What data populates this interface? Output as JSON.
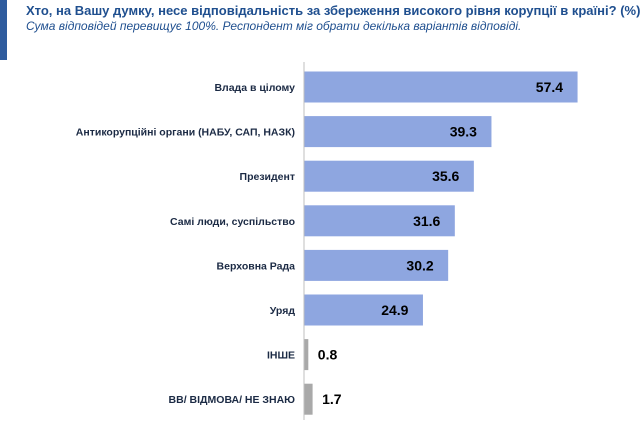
{
  "header": {
    "title": "Хто, на Вашу думку, несе відповідальність за збереження високого рівня корупції в країні? (%)",
    "subtitle": "Сума відповідей перевищує 100%. Респондент міг обрати декілька варіантів відповіді."
  },
  "colors": {
    "bar_main": "#8ea6e0",
    "bar_other": "#a9a9a9",
    "title": "#1f4f8f",
    "label": "#1b2a44",
    "axis": "#bfbfbf"
  },
  "chart_data": {
    "type": "bar",
    "orientation": "horizontal",
    "categories": [
      "Влада в цілому",
      "Антикорупційні органи (НАБУ, САП, НАЗК)",
      "Президент",
      "Самі люди, суспільство",
      "Верховна Рада",
      "Уряд",
      "ІНШЕ",
      "ВВ/ ВІДМОВА/ НЕ ЗНАЮ"
    ],
    "values": [
      57.4,
      39.3,
      35.6,
      31.6,
      30.2,
      24.9,
      0.8,
      1.7
    ],
    "value_labels": [
      "57.4",
      "39.3",
      "35.6",
      "31.6",
      "30.2",
      "24.9",
      "0.8",
      "1.7"
    ],
    "bar_colors": [
      "#8ea6e0",
      "#8ea6e0",
      "#8ea6e0",
      "#8ea6e0",
      "#8ea6e0",
      "#8ea6e0",
      "#a9a9a9",
      "#a9a9a9"
    ],
    "xlim": [
      0,
      70
    ],
    "grid": false,
    "title": "Хто, на Вашу думку, несе відповідальність за збереження високого рівня корупції в країні? (%)"
  }
}
